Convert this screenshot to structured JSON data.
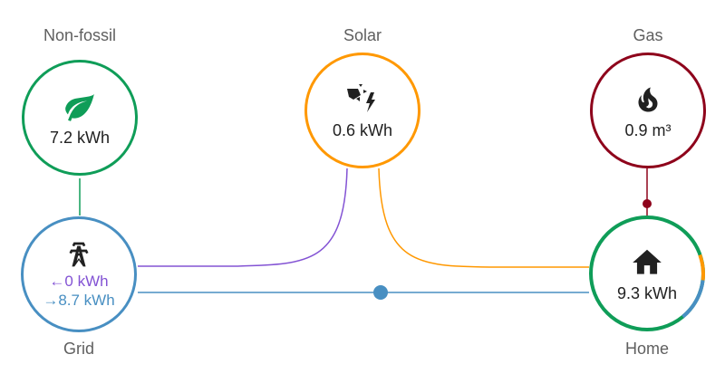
{
  "colors": {
    "non_fossil": "#0f9d58",
    "solar": "#ff9800",
    "gas": "#8e021b",
    "grid_consumption": "#488fc2",
    "grid_return": "#8353d4",
    "home_ring_green": "#0f9d58",
    "home_ring_solar": "#ff9800",
    "home_ring_grid": "#488fc2"
  },
  "nodes": {
    "non_fossil": {
      "label": "Non-fossil",
      "value": "7.2 kWh",
      "icon": "leaf-icon"
    },
    "solar": {
      "label": "Solar",
      "value": "0.6 kWh",
      "icon": "solar-power-icon"
    },
    "gas": {
      "label": "Gas",
      "value": "0.9 m³",
      "icon": "fire-icon"
    },
    "grid": {
      "label": "Grid",
      "return_arrow": "←",
      "return_value": "0 kWh",
      "consumption_arrow": "→",
      "consumption_value": "8.7 kWh",
      "icon": "transmission-tower-icon"
    },
    "home": {
      "label": "Home",
      "value": "9.3 kWh",
      "icon": "home-icon"
    }
  }
}
